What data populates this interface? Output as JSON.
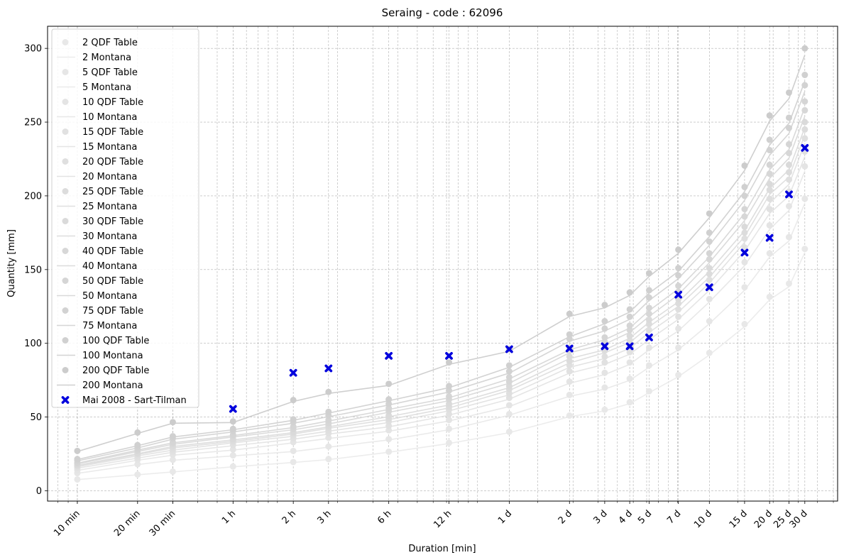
{
  "chart_data": {
    "type": "scatter",
    "title": "Seraing - code : 62096",
    "xlabel": "Duration [min]",
    "ylabel": "Quantity [mm]",
    "x_scale": "log",
    "xlim_min": [
      7.1,
      63000
    ],
    "ylim": [
      -7,
      315
    ],
    "grid": true,
    "legend_position": "top-left",
    "x_tick_labels": [
      {
        "label": "10 min",
        "minutes": 10
      },
      {
        "label": "20 min",
        "minutes": 20
      },
      {
        "label": "30 min",
        "minutes": 30
      },
      {
        "label": "1 h",
        "minutes": 60
      },
      {
        "label": "2 h",
        "minutes": 120
      },
      {
        "label": "3 h",
        "minutes": 180
      },
      {
        "label": "6 h",
        "minutes": 360
      },
      {
        "label": "12 h",
        "minutes": 720
      },
      {
        "label": "1 d",
        "minutes": 1440
      },
      {
        "label": "2 d",
        "minutes": 2880
      },
      {
        "label": "3 d",
        "minutes": 4320
      },
      {
        "label": "4 d",
        "minutes": 5760
      },
      {
        "label": "5 d",
        "minutes": 7200
      },
      {
        "label": "7 d",
        "minutes": 10080
      },
      {
        "label": "10 d",
        "minutes": 14400
      },
      {
        "label": "15 d",
        "minutes": 21600
      },
      {
        "label": "20 d",
        "minutes": 28800
      },
      {
        "label": "25 d",
        "minutes": 36000
      },
      {
        "label": "30 d",
        "minutes": 43200
      }
    ],
    "y_ticks": [
      0,
      50,
      100,
      150,
      200,
      250,
      300
    ],
    "durations_min": [
      10,
      20,
      30,
      60,
      120,
      180,
      360,
      720,
      1440,
      2880,
      4320,
      5760,
      7200,
      10080,
      14400,
      21600,
      28800,
      36000,
      43200
    ],
    "return_periods": [
      2,
      5,
      10,
      15,
      20,
      25,
      30,
      40,
      50,
      75,
      100,
      200
    ],
    "qdf_series": [
      {
        "name": "2 QDF Table",
        "color": "#e8e8e8",
        "values": [
          7.7,
          11,
          13,
          16.5,
          19.5,
          21.5,
          26.5,
          32.5,
          40,
          51,
          55,
          60,
          67.5,
          78.5,
          93.5,
          113,
          131.5,
          140.5,
          164
        ]
      },
      {
        "name": "5 QDF Table",
        "color": "#e6e6e6",
        "values": [
          12,
          18,
          21,
          24,
          27,
          30,
          35,
          42,
          52,
          65,
          70,
          76,
          85,
          97,
          115,
          138,
          161,
          172,
          198
        ]
      },
      {
        "name": "10 QDF Table",
        "color": "#e4e4e4",
        "values": [
          14,
          21,
          24.5,
          28,
          33,
          36,
          41,
          48,
          58,
          74,
          80,
          87,
          97,
          110,
          130,
          155,
          180,
          193,
          220
        ]
      },
      {
        "name": "15 QDF Table",
        "color": "#e1e1e1",
        "values": [
          15.5,
          22.5,
          26.5,
          31,
          35.5,
          39,
          44,
          52,
          63,
          81,
          87,
          94,
          104,
          118,
          138,
          165,
          191,
          203,
          230
        ]
      },
      {
        "name": "20 QDF Table",
        "color": "#dfdfdf",
        "values": [
          16.5,
          24,
          28,
          33,
          37.5,
          41,
          47,
          55,
          66,
          85,
          91,
          98,
          109,
          123,
          143,
          171,
          198,
          211,
          239
        ]
      },
      {
        "name": "25 QDF Table",
        "color": "#dcdcdc",
        "values": [
          17,
          25,
          29.5,
          34,
          39,
          43,
          49,
          57,
          69,
          88,
          95,
          102,
          113,
          127,
          147,
          175,
          204,
          216,
          245
        ]
      },
      {
        "name": "30 QDF Table",
        "color": "#dadada",
        "values": [
          17.5,
          25.5,
          30.5,
          35,
          40,
          44,
          51,
          59,
          71,
          91,
          97,
          105,
          116,
          130,
          151,
          179,
          208,
          221,
          250
        ]
      },
      {
        "name": "40 QDF Table",
        "color": "#d7d7d7",
        "values": [
          18.5,
          27,
          32,
          37,
          42,
          46,
          54,
          62,
          74,
          95,
          101,
          109,
          120,
          135,
          157,
          186,
          215,
          229,
          258
        ]
      },
      {
        "name": "50 QDF Table",
        "color": "#d5d5d5",
        "values": [
          19,
          28,
          33,
          38,
          43.5,
          48,
          56,
          64,
          77,
          97,
          104,
          112,
          124,
          139,
          161,
          191,
          221,
          235,
          264
        ]
      },
      {
        "name": "75 QDF Table",
        "color": "#d2d2d2",
        "values": [
          20.5,
          29.5,
          35.5,
          40.5,
          46.5,
          51,
          59,
          68,
          81,
          103,
          110,
          118,
          131,
          146,
          169,
          200,
          231,
          246,
          275
        ]
      },
      {
        "name": "100 QDF Table",
        "color": "#d0d0d0",
        "values": [
          21.5,
          31,
          37,
          42,
          48.5,
          53.5,
          62,
          71,
          85,
          106,
          115,
          123,
          136,
          151,
          175,
          206,
          238,
          253,
          282
        ]
      },
      {
        "name": "200 QDF Table",
        "color": "#cccccc",
        "values": [
          27,
          39.5,
          46.5,
          47,
          61.5,
          67,
          72.5,
          87,
          96,
          120,
          126,
          134.5,
          147.5,
          163.5,
          188,
          220.5,
          254.5,
          270,
          300
        ]
      }
    ],
    "montana_series": [
      {
        "name": "2 Montana",
        "color": "#ececec"
      },
      {
        "name": "5 Montana",
        "color": "#eaeaea"
      },
      {
        "name": "10 Montana",
        "color": "#e8e8e8"
      },
      {
        "name": "15 Montana",
        "color": "#e5e5e5"
      },
      {
        "name": "20 Montana",
        "color": "#e3e3e3"
      },
      {
        "name": "25 Montana",
        "color": "#e0e0e0"
      },
      {
        "name": "30 Montana",
        "color": "#dedede"
      },
      {
        "name": "40 Montana",
        "color": "#dbdbdb"
      },
      {
        "name": "50 Montana",
        "color": "#d9d9d9"
      },
      {
        "name": "75 Montana",
        "color": "#d6d6d6"
      },
      {
        "name": "100 Montana",
        "color": "#d3d3d3"
      },
      {
        "name": "200 Montana",
        "color": "#cfcfcf"
      }
    ],
    "event_series": {
      "name": "Mai 2008 - Sart-Tilman",
      "color": "#0000dd",
      "x_min": [
        60,
        120,
        180,
        360,
        720,
        1440,
        2880,
        4320,
        5760,
        7200,
        10080,
        14400,
        21600,
        28800,
        36000,
        43200
      ],
      "values": [
        55.5,
        80,
        83,
        91.5,
        91.5,
        96,
        96.5,
        98,
        98,
        104,
        133,
        138,
        161.5,
        171.5,
        201,
        232.5
      ]
    }
  }
}
